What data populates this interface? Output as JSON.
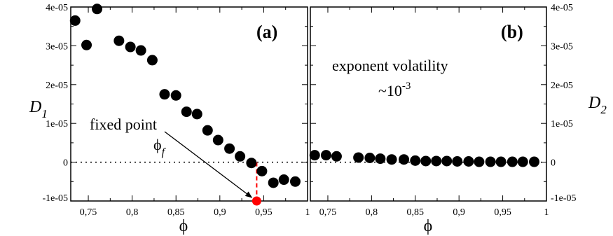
{
  "chart_data": [
    {
      "type": "scatter",
      "panel_label": "(a)",
      "xlabel": "ϕ",
      "ylabel": "D",
      "ylabel_sub": "1",
      "xlim": [
        0.73,
        1.0
      ],
      "ylim": [
        -1e-05,
        4e-05
      ],
      "x_ticks": [
        0.75,
        0.8,
        0.85,
        0.9,
        0.95,
        1.0
      ],
      "x_tick_labels": [
        "0,75",
        "0,8",
        "0,85",
        "0,9",
        "0,95",
        "1"
      ],
      "y_ticks": [
        -1e-05,
        0,
        1e-05,
        2e-05,
        3e-05,
        4e-05
      ],
      "y_tick_labels": [
        "-1e-05",
        "0",
        "1e-05",
        "2e-05",
        "3e-05",
        "4e-05"
      ],
      "x": [
        0.735,
        0.748,
        0.76,
        0.785,
        0.798,
        0.81,
        0.823,
        0.837,
        0.85,
        0.862,
        0.874,
        0.886,
        0.898,
        0.911,
        0.923,
        0.936,
        0.948,
        0.961,
        0.973,
        0.986
      ],
      "y": [
        3.65e-05,
        3.02e-05,
        3.95e-05,
        3.13e-05,
        2.97e-05,
        2.88e-05,
        2.63e-05,
        1.75e-05,
        1.72e-05,
        1.3e-05,
        1.24e-05,
        8.2e-06,
        5.7e-06,
        3.5e-06,
        1.5e-06,
        -2e-07,
        -2.3e-06,
        -5.3e-06,
        -4.5e-06,
        -5e-06
      ],
      "fixed_point": {
        "x": 0.942,
        "y": -1e-05,
        "color": "#ff0000"
      },
      "annotation": {
        "text": "fixed point",
        "symbol": "ϕ",
        "symbol_sub": "f"
      },
      "marker_color": "#000000"
    },
    {
      "type": "scatter",
      "panel_label": "(b)",
      "xlabel": "ϕ",
      "ylabel": "D",
      "ylabel_sub": "2",
      "xlim": [
        0.73,
        1.0
      ],
      "ylim": [
        -1e-05,
        4e-05
      ],
      "x_ticks": [
        0.75,
        0.8,
        0.85,
        0.9,
        0.95,
        1.0
      ],
      "x_tick_labels": [
        "0,75",
        "0,8",
        "0,85",
        "0,9",
        "0,95",
        "1"
      ],
      "y_ticks": [
        -1e-05,
        0,
        1e-05,
        2e-05,
        3e-05,
        4e-05
      ],
      "y_tick_labels": [
        "-1e-05",
        "0",
        "1e-05",
        "2e-05",
        "3e-05",
        "4e-05"
      ],
      "x": [
        0.735,
        0.748,
        0.76,
        0.785,
        0.798,
        0.81,
        0.823,
        0.837,
        0.85,
        0.862,
        0.874,
        0.886,
        0.898,
        0.911,
        0.923,
        0.936,
        0.948,
        0.961,
        0.973,
        0.986
      ],
      "y": [
        1.8e-06,
        1.8e-06,
        1.5e-06,
        1.2e-06,
        1.1e-06,
        9e-07,
        7e-07,
        7e-07,
        4e-07,
        3e-07,
        3e-07,
        3e-07,
        2e-07,
        2e-07,
        1e-07,
        1e-07,
        1e-07,
        1e-07,
        1e-07,
        1e-07
      ],
      "annotation": {
        "line1": "exponent volatility",
        "line2_prefix": "~10",
        "line2_exp": "-3"
      },
      "marker_color": "#000000"
    }
  ]
}
